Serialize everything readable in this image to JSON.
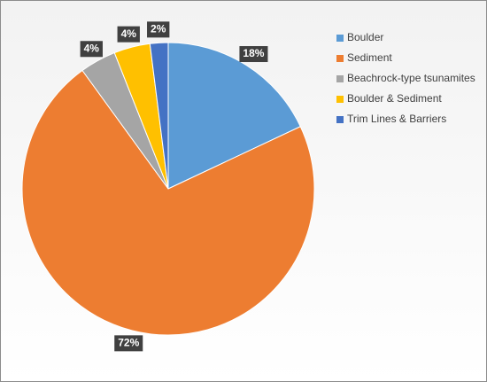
{
  "chart_data": {
    "type": "pie",
    "categories": [
      "Boulder",
      "Sediment",
      "Beachrock-type tsunamites",
      "Boulder & Sediment",
      "Trim Lines & Barriers"
    ],
    "values": [
      18,
      72,
      4,
      4,
      2
    ],
    "value_labels": [
      "18%",
      "72%",
      "4%",
      "4%",
      "2%"
    ],
    "colors": [
      "#5b9bd5",
      "#ed7d31",
      "#a5a5a5",
      "#ffc000",
      "#4472c4"
    ],
    "legend": "right"
  }
}
